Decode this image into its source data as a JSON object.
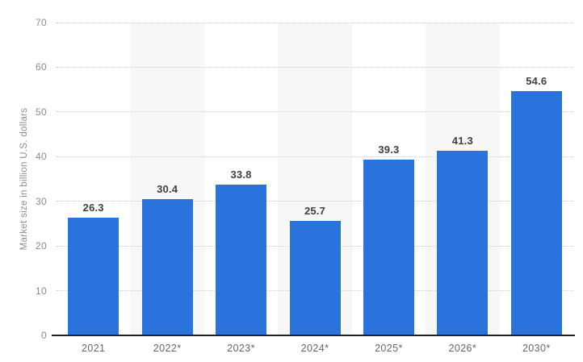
{
  "chart_data": {
    "type": "bar",
    "title": "",
    "categories": [
      "2021",
      "2022*",
      "2023*",
      "2024*",
      "2025*",
      "2026*",
      "2030*"
    ],
    "values": [
      26.3,
      30.4,
      33.8,
      25.7,
      39.3,
      41.3,
      54.6
    ],
    "value_labels": [
      "26.3",
      "30.4",
      "33.8",
      "25.7",
      "39.3",
      "41.3",
      "54.6"
    ],
    "xlabel": "",
    "ylabel": "Market size in billion U.S. dollars",
    "ylim": [
      0,
      70
    ],
    "yticks": [
      0,
      10,
      20,
      30,
      40,
      50,
      60,
      70
    ],
    "grid": "horizontal-dotted",
    "legend_position": "none",
    "alternating_bands_on_categories": [
      "2022*",
      "2024*",
      "2026*"
    ],
    "colors": {
      "bar": "#2a72dc",
      "plot_band": "#f7f7f8",
      "gridline": "#cfcfcf",
      "axis_line": "#1f1f1f",
      "y_tick_label": "#8c8c8c",
      "x_tick_label": "#666666",
      "value_label": "#404040",
      "background": "#ffffff"
    }
  }
}
